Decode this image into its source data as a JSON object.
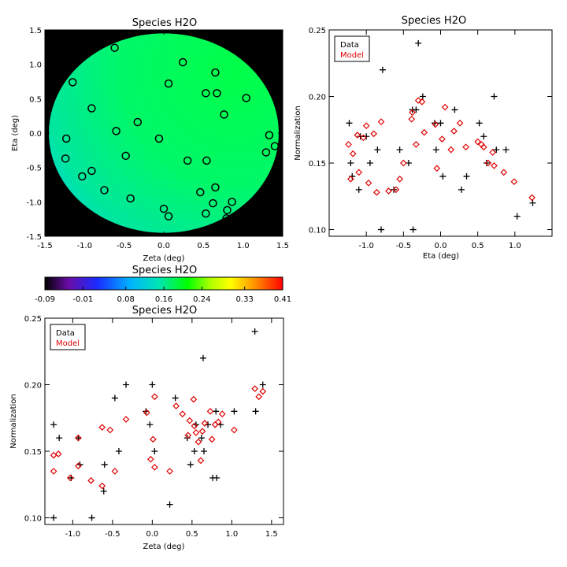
{
  "map": {
    "title": "Species H2O",
    "xlabel": "Zeta (deg)",
    "ylabel": "Eta (deg)",
    "xlim": [
      -1.5,
      1.5
    ],
    "ylim": [
      -1.5,
      1.5
    ],
    "xticks": [
      -1.5,
      -1.0,
      -0.5,
      0.0,
      0.5,
      1.0,
      1.5
    ],
    "yticks": [
      -1.5,
      -1.0,
      -0.5,
      0.0,
      0.5,
      1.0,
      1.5
    ],
    "xtick_labels": [
      "-1.5",
      "-1.0",
      "-0.5",
      "0.0",
      "0.5",
      "1.0",
      "1.5"
    ],
    "ytick_labels": [
      "-1.5",
      "-1.0",
      "-0.5",
      "0.0",
      "0.5",
      "1.0",
      "1.5"
    ],
    "field_radius_deg": 1.45,
    "background_color": "#000000",
    "marker_color": "#000000",
    "points": [
      {
        "x": -0.62,
        "y": 1.24
      },
      {
        "x": 0.24,
        "y": 1.03
      },
      {
        "x": -1.15,
        "y": 0.74
      },
      {
        "x": 0.06,
        "y": 0.72
      },
      {
        "x": 0.65,
        "y": 0.88
      },
      {
        "x": 0.53,
        "y": 0.58
      },
      {
        "x": 0.67,
        "y": 0.58
      },
      {
        "x": 1.04,
        "y": 0.51
      },
      {
        "x": -0.91,
        "y": 0.36
      },
      {
        "x": 0.76,
        "y": 0.27
      },
      {
        "x": -0.33,
        "y": 0.16
      },
      {
        "x": -0.6,
        "y": 0.03
      },
      {
        "x": -1.23,
        "y": -0.08
      },
      {
        "x": -0.06,
        "y": -0.08
      },
      {
        "x": 1.33,
        "y": -0.03
      },
      {
        "x": 1.4,
        "y": -0.19
      },
      {
        "x": 1.29,
        "y": -0.28
      },
      {
        "x": -1.24,
        "y": -0.37
      },
      {
        "x": -0.48,
        "y": -0.33
      },
      {
        "x": 0.3,
        "y": -0.4
      },
      {
        "x": 0.54,
        "y": -0.4
      },
      {
        "x": -0.91,
        "y": -0.55
      },
      {
        "x": -1.03,
        "y": -0.63
      },
      {
        "x": 0.65,
        "y": -0.79
      },
      {
        "x": -0.75,
        "y": -0.83
      },
      {
        "x": 0.46,
        "y": -0.86
      },
      {
        "x": -0.42,
        "y": -0.95
      },
      {
        "x": 0.62,
        "y": -1.02
      },
      {
        "x": 0.86,
        "y": -1.0
      },
      {
        "x": 0.0,
        "y": -1.1
      },
      {
        "x": 0.53,
        "y": -1.17
      },
      {
        "x": 0.8,
        "y": -1.12
      },
      {
        "x": 0.06,
        "y": -1.21
      },
      {
        "x": 0.79,
        "y": -1.24
      }
    ]
  },
  "colorbar": {
    "title": "Species H2O",
    "range": [
      -0.09,
      0.41
    ],
    "tick_values": [
      -0.09,
      -0.01,
      0.08,
      0.16,
      0.24,
      0.33,
      0.41
    ],
    "tick_labels": [
      "-0.09",
      "-0.01",
      "0.08",
      "0.16",
      "0.24",
      "0.33",
      "0.41"
    ],
    "colors": [
      "#000000",
      "#6a0ca8",
      "#1a2cff",
      "#00b4ff",
      "#00e6b4",
      "#00ff00",
      "#b4ff00",
      "#ffff00",
      "#ff9600",
      "#ff0000"
    ]
  },
  "chart_data": [
    {
      "type": "scatter",
      "title": "Species H2O",
      "xlabel": "Eta (deg)",
      "ylabel": "Normalization",
      "xlim": [
        -1.5,
        1.5
      ],
      "ylim": [
        0.095,
        0.25
      ],
      "xticks": [
        -1.0,
        -0.5,
        0.0,
        0.5,
        1.0
      ],
      "yticks": [
        0.1,
        0.15,
        0.2,
        0.25
      ],
      "xtick_labels": [
        "-1.0",
        "-0.5",
        "0.0",
        "0.5",
        "1.0"
      ],
      "ytick_labels": [
        "0.10",
        "0.15",
        "0.20",
        "0.25"
      ],
      "legend_position": "top-left",
      "series": [
        {
          "name": "Data",
          "color": "#000000",
          "marker": "plus",
          "points": [
            [
              -1.23,
              0.18
            ],
            [
              -1.21,
              0.15
            ],
            [
              -1.19,
              0.14
            ],
            [
              -1.1,
              0.13
            ],
            [
              -1.08,
              0.17
            ],
            [
              -1.0,
              0.17
            ],
            [
              -0.95,
              0.15
            ],
            [
              -0.85,
              0.16
            ],
            [
              -0.8,
              0.1
            ],
            [
              -0.78,
              0.22
            ],
            [
              -0.63,
              0.13
            ],
            [
              -0.55,
              0.16
            ],
            [
              -0.43,
              0.15
            ],
            [
              -0.38,
              0.19
            ],
            [
              -0.37,
              0.1
            ],
            [
              -0.33,
              0.19
            ],
            [
              -0.3,
              0.24
            ],
            [
              -0.24,
              0.2
            ],
            [
              -0.08,
              0.18
            ],
            [
              -0.06,
              0.16
            ],
            [
              0.0,
              0.18
            ],
            [
              0.03,
              0.14
            ],
            [
              0.19,
              0.19
            ],
            [
              0.28,
              0.13
            ],
            [
              0.35,
              0.14
            ],
            [
              0.52,
              0.18
            ],
            [
              0.58,
              0.17
            ],
            [
              0.62,
              0.15
            ],
            [
              0.72,
              0.2
            ],
            [
              0.75,
              0.16
            ],
            [
              0.88,
              0.16
            ],
            [
              1.03,
              0.11
            ],
            [
              1.24,
              0.12
            ]
          ]
        },
        {
          "name": "Model",
          "color": "#e00000",
          "marker": "diamond",
          "points": [
            [
              -1.24,
              0.164
            ],
            [
              -1.21,
              0.138
            ],
            [
              -1.18,
              0.157
            ],
            [
              -1.12,
              0.171
            ],
            [
              -1.1,
              0.143
            ],
            [
              -1.04,
              0.169
            ],
            [
              -1.0,
              0.178
            ],
            [
              -0.97,
              0.135
            ],
            [
              -0.9,
              0.172
            ],
            [
              -0.86,
              0.128
            ],
            [
              -0.8,
              0.181
            ],
            [
              -0.7,
              0.129
            ],
            [
              -0.6,
              0.13
            ],
            [
              -0.55,
              0.138
            ],
            [
              -0.5,
              0.15
            ],
            [
              -0.39,
              0.183
            ],
            [
              -0.38,
              0.188
            ],
            [
              -0.33,
              0.164
            ],
            [
              -0.3,
              0.197
            ],
            [
              -0.25,
              0.196
            ],
            [
              -0.22,
              0.173
            ],
            [
              -0.07,
              0.179
            ],
            [
              -0.05,
              0.146
            ],
            [
              0.02,
              0.168
            ],
            [
              0.06,
              0.192
            ],
            [
              0.14,
              0.16
            ],
            [
              0.18,
              0.174
            ],
            [
              0.26,
              0.18
            ],
            [
              0.34,
              0.162
            ],
            [
              0.5,
              0.166
            ],
            [
              0.55,
              0.164
            ],
            [
              0.58,
              0.162
            ],
            [
              0.64,
              0.15
            ],
            [
              0.7,
              0.158
            ],
            [
              0.72,
              0.148
            ],
            [
              0.85,
              0.143
            ],
            [
              0.99,
              0.136
            ],
            [
              1.23,
              0.124
            ]
          ]
        }
      ]
    },
    {
      "type": "scatter",
      "title": "Species H2O",
      "xlabel": "Zeta (deg)",
      "ylabel": "Normalization",
      "xlim": [
        -1.35,
        1.65
      ],
      "ylim": [
        0.095,
        0.25
      ],
      "xticks": [
        -1.0,
        -0.5,
        0.0,
        0.5,
        1.0,
        1.5
      ],
      "yticks": [
        0.1,
        0.15,
        0.2,
        0.25
      ],
      "xtick_labels": [
        "-1.0",
        "-0.5",
        "0.0",
        "0.5",
        "1.0",
        "1.5"
      ],
      "ytick_labels": [
        "0.10",
        "0.15",
        "0.20",
        "0.25"
      ],
      "legend_position": "top-left",
      "series": [
        {
          "name": "Data",
          "color": "#000000",
          "marker": "plus",
          "points": [
            [
              -1.24,
              0.17
            ],
            [
              -1.24,
              0.1
            ],
            [
              -1.17,
              0.16
            ],
            [
              -1.02,
              0.13
            ],
            [
              -0.93,
              0.16
            ],
            [
              -0.91,
              0.14
            ],
            [
              -0.76,
              0.1
            ],
            [
              -0.61,
              0.12
            ],
            [
              -0.6,
              0.14
            ],
            [
              -0.47,
              0.19
            ],
            [
              -0.42,
              0.15
            ],
            [
              -0.33,
              0.2
            ],
            [
              -0.08,
              0.18
            ],
            [
              -0.03,
              0.17
            ],
            [
              0.0,
              0.2
            ],
            [
              0.03,
              0.15
            ],
            [
              0.22,
              0.11
            ],
            [
              0.29,
              0.19
            ],
            [
              0.44,
              0.16
            ],
            [
              0.48,
              0.14
            ],
            [
              0.53,
              0.15
            ],
            [
              0.55,
              0.17
            ],
            [
              0.62,
              0.16
            ],
            [
              0.64,
              0.22
            ],
            [
              0.65,
              0.15
            ],
            [
              0.7,
              0.17
            ],
            [
              0.76,
              0.13
            ],
            [
              0.8,
              0.18
            ],
            [
              0.81,
              0.13
            ],
            [
              0.86,
              0.17
            ],
            [
              1.03,
              0.18
            ],
            [
              1.29,
              0.24
            ],
            [
              1.3,
              0.18
            ],
            [
              1.39,
              0.2
            ]
          ]
        },
        {
          "name": "Model",
          "color": "#e00000",
          "marker": "diamond",
          "points": [
            [
              -1.24,
              0.147
            ],
            [
              -1.24,
              0.135
            ],
            [
              -1.18,
              0.148
            ],
            [
              -1.03,
              0.13
            ],
            [
              -0.93,
              0.139
            ],
            [
              -0.93,
              0.16
            ],
            [
              -0.77,
              0.128
            ],
            [
              -0.63,
              0.124
            ],
            [
              -0.63,
              0.168
            ],
            [
              -0.53,
              0.166
            ],
            [
              -0.47,
              0.135
            ],
            [
              -0.33,
              0.174
            ],
            [
              -0.07,
              0.179
            ],
            [
              -0.02,
              0.144
            ],
            [
              0.01,
              0.159
            ],
            [
              0.03,
              0.138
            ],
            [
              0.03,
              0.191
            ],
            [
              0.22,
              0.135
            ],
            [
              0.3,
              0.184
            ],
            [
              0.38,
              0.178
            ],
            [
              0.45,
              0.162
            ],
            [
              0.47,
              0.173
            ],
            [
              0.52,
              0.189
            ],
            [
              0.53,
              0.169
            ],
            [
              0.55,
              0.164
            ],
            [
              0.58,
              0.157
            ],
            [
              0.61,
              0.143
            ],
            [
              0.63,
              0.165
            ],
            [
              0.66,
              0.171
            ],
            [
              0.73,
              0.18
            ],
            [
              0.75,
              0.159
            ],
            [
              0.79,
              0.17
            ],
            [
              0.83,
              0.172
            ],
            [
              0.88,
              0.178
            ],
            [
              1.03,
              0.166
            ],
            [
              1.29,
              0.197
            ],
            [
              1.34,
              0.191
            ],
            [
              1.39,
              0.195
            ]
          ]
        }
      ]
    }
  ]
}
